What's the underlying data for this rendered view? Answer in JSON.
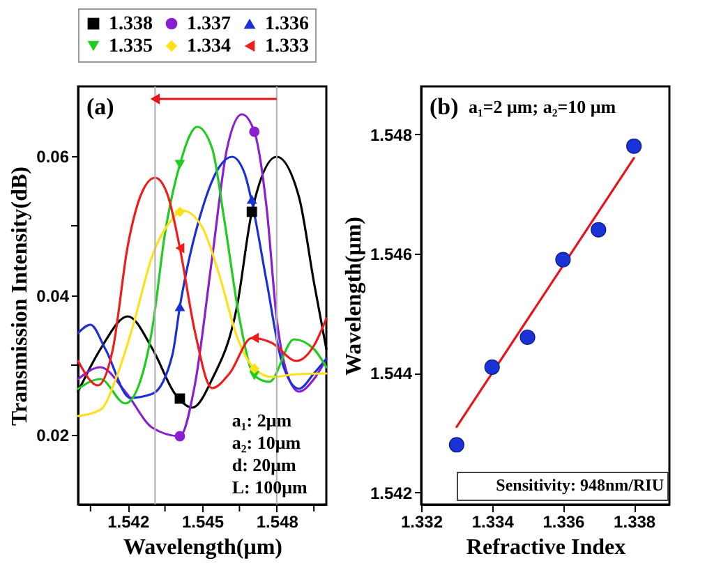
{
  "chart_data": [
    {
      "type": "line",
      "xlabel": "Wavelength(μm)",
      "ylabel": "Transmission Intensity(dB)",
      "xlim": [
        1.54,
        1.55
      ],
      "ylim": [
        0.01,
        0.07
      ],
      "xticks": [
        {
          "value": 1.5405,
          "label": null
        },
        1.542,
        {
          "value": 1.5435,
          "label": null
        },
        1.545,
        {
          "value": 1.5465,
          "label": null
        },
        1.548,
        {
          "value": 1.5495,
          "label": null
        }
      ],
      "yticks": [
        0.02,
        {
          "value": 0.03,
          "label": null
        },
        0.04,
        {
          "value": 0.05,
          "label": null
        },
        0.06
      ],
      "legend": "top",
      "annotations": [
        "(a)",
        "a₁: 2μm",
        "a₂: 10μm",
        "d: 20μm",
        "L: 100μm"
      ],
      "ref_lines": [
        {
          "axis": "x",
          "value": 1.5431,
          "color": "#b0b0b0"
        },
        {
          "axis": "x",
          "value": 1.548,
          "color": "#b0b0b0"
        }
      ],
      "series": [
        {
          "color": "#000000",
          "x": [
            1.54,
            1.5409,
            1.542,
            1.543,
            1.5439,
            1.5446,
            1.5454,
            1.5464,
            1.547,
            1.548,
            1.5489,
            1.5495,
            1.55
          ],
          "values": [
            0.0262,
            0.0323,
            0.037,
            0.0323,
            0.0259,
            0.0239,
            0.028,
            0.0384,
            0.052,
            0.0599,
            0.0541,
            0.0419,
            0.0323
          ]
        },
        {
          "color": "#8a1fd0",
          "x": [
            1.54,
            1.5409,
            1.5419,
            1.543,
            1.5441,
            1.5447,
            1.5454,
            1.546,
            1.5466,
            1.5471,
            1.5476,
            1.548,
            1.5485,
            1.5489,
            1.5495,
            1.55
          ],
          "values": [
            0.028,
            0.0297,
            0.0262,
            0.021,
            0.0198,
            0.0271,
            0.0454,
            0.0611,
            0.066,
            0.0635,
            0.0524,
            0.0367,
            0.028,
            0.0262,
            0.028,
            0.0309
          ]
        },
        {
          "color": "#1a2fd6",
          "x": [
            1.54,
            1.5405,
            1.5411,
            1.5421,
            1.543,
            1.5438,
            1.5441,
            1.545,
            1.5457,
            1.5462,
            1.5467,
            1.547,
            1.5476,
            1.5482,
            1.5489,
            1.5495,
            1.55
          ],
          "values": [
            0.0346,
            0.0358,
            0.0323,
            0.0253,
            0.0259,
            0.0315,
            0.0384,
            0.0524,
            0.0585,
            0.0599,
            0.0576,
            0.0534,
            0.0419,
            0.0306,
            0.0266,
            0.0288,
            0.0309
          ]
        },
        {
          "color": "#1fcc1f",
          "x": [
            1.54,
            1.5409,
            1.5419,
            1.5426,
            1.543,
            1.5435,
            1.5441,
            1.5448,
            1.5454,
            1.5459,
            1.5465,
            1.5471,
            1.5477,
            1.5487,
            1.5495,
            1.55
          ],
          "values": [
            0.0266,
            0.028,
            0.0245,
            0.0288,
            0.0355,
            0.0489,
            0.0588,
            0.0642,
            0.0611,
            0.0506,
            0.0367,
            0.0285,
            0.0276,
            0.0337,
            0.0323,
            0.0297
          ]
        },
        {
          "color": "#ffe01a",
          "x": [
            1.54,
            1.5409,
            1.5416,
            1.5422,
            1.543,
            1.5438,
            1.5442,
            1.545,
            1.5457,
            1.5464,
            1.5471,
            1.5478,
            1.5488,
            1.55
          ],
          "values": [
            0.0227,
            0.0236,
            0.0288,
            0.0355,
            0.0458,
            0.051,
            0.0522,
            0.0498,
            0.0428,
            0.0341,
            0.0295,
            0.0283,
            0.0287,
            0.0288
          ]
        },
        {
          "color": "#f01c1c",
          "x": [
            1.54,
            1.5408,
            1.5414,
            1.542,
            1.5426,
            1.5431,
            1.5436,
            1.5441,
            1.5447,
            1.5454,
            1.5461,
            1.547,
            1.5478,
            1.5488,
            1.5495,
            1.55
          ],
          "values": [
            0.0306,
            0.0271,
            0.0323,
            0.0471,
            0.055,
            0.0569,
            0.0545,
            0.0468,
            0.0349,
            0.0267,
            0.0288,
            0.0339,
            0.0332,
            0.0306,
            0.0328,
            0.0367
          ]
        },
        {
          "type": "scatter",
          "name": "1.338",
          "color": "#000000",
          "marker": "square",
          "x": [
            1.5441,
            1.547
          ],
          "values": [
            0.0252,
            0.052
          ]
        },
        {
          "type": "scatter",
          "name": "1.337",
          "color": "#8a1fd0",
          "marker": "circle",
          "x": [
            1.5441,
            1.5471
          ],
          "values": [
            0.0198,
            0.0635
          ]
        },
        {
          "type": "scatter",
          "name": "1.336",
          "color": "#1a2fd6",
          "marker": "triangle",
          "x": [
            1.5441,
            1.547
          ],
          "values": [
            0.0384,
            0.0538
          ]
        },
        {
          "type": "scatter",
          "name": "1.335",
          "color": "#1fcc1f",
          "marker": "triangle-down",
          "x": [
            1.5441,
            1.5471
          ],
          "values": [
            0.0588,
            0.0285
          ]
        },
        {
          "type": "scatter",
          "name": "1.334",
          "color": "#ffe01a",
          "marker": "diamond",
          "x": [
            1.5441,
            1.5471
          ],
          "values": [
            0.052,
            0.0295
          ]
        },
        {
          "type": "scatter",
          "name": "1.333",
          "color": "#f01c1c",
          "marker": "triangle-left",
          "x": [
            1.5441,
            1.5471
          ],
          "values": [
            0.0468,
            0.0339
          ]
        }
      ]
    },
    {
      "type": "scatter",
      "xlabel": "Refractive Index",
      "ylabel": "Wavelength(μm)",
      "xlim": [
        1.332,
        1.339
      ],
      "ylim": [
        1.5418,
        1.5488
      ],
      "xticks": [
        1.332,
        1.334,
        1.336,
        1.338
      ],
      "yticks": [
        1.542,
        1.544,
        1.546,
        1.548
      ],
      "annotations": [
        "(b)",
        "a₁=2 μm; a₂=10 μm",
        "Sensitivity: 948nm/RIU"
      ],
      "series": [
        {
          "type": "line",
          "color": "#e8141b",
          "x": [
            1.333,
            1.338
          ],
          "values": [
            1.5431,
            1.5476
          ]
        },
        {
          "marker": "circle",
          "color": "#1a33d6",
          "x": [
            1.333,
            1.334,
            1.335,
            1.336,
            1.337,
            1.338
          ],
          "values": [
            1.5428,
            1.5441,
            1.5446,
            1.5459,
            1.5464,
            1.5478
          ]
        }
      ]
    }
  ]
}
